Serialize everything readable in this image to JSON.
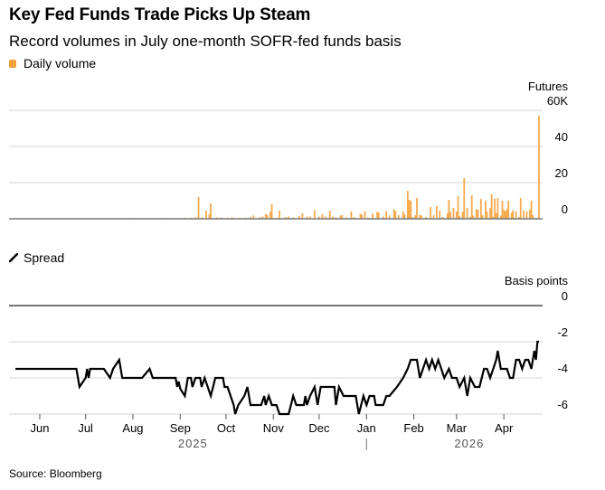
{
  "title": "Key Fed Funds Trade Picks Up Steam",
  "subtitle": "Record volumes in July one-month SOFR-fed funds basis",
  "source": "Source: Bloomberg",
  "colors": {
    "volume": "#f5a13a",
    "spread": "#000000",
    "grid": "#e3e3e3",
    "axis": "#777777"
  },
  "chart_data": [
    {
      "type": "bar",
      "name": "volume-chart",
      "legend": "Daily volume",
      "unit_label": "Futures",
      "ylabel": "Futures",
      "ylim": [
        0,
        60
      ],
      "yticks": [
        "0",
        "20",
        "40",
        "60K"
      ],
      "ytick_values": [
        0,
        20,
        40,
        60
      ],
      "grid": true,
      "x_start": "2025-05-16",
      "x_end": "2026-04-24",
      "series": [
        {
          "name": "Daily volume (thousands of contracts)",
          "points": [
            [
              "2025-07-30",
              0.4
            ],
            [
              "2025-08-10",
              0.3
            ],
            [
              "2025-08-20",
              0.5
            ],
            [
              "2025-08-28",
              0.3
            ],
            [
              "2025-09-04",
              0.6
            ],
            [
              "2025-09-08",
              0.5
            ],
            [
              "2025-09-11",
              0.8
            ],
            [
              "2025-09-13",
              12
            ],
            [
              "2025-09-15",
              0.7
            ],
            [
              "2025-09-18",
              4.5
            ],
            [
              "2025-09-20",
              2.5
            ],
            [
              "2025-09-21",
              8.5
            ],
            [
              "2025-09-25",
              0.8
            ],
            [
              "2025-09-28",
              0.7
            ],
            [
              "2025-10-02",
              0.6
            ],
            [
              "2025-10-05",
              0.8
            ],
            [
              "2025-10-10",
              0.5
            ],
            [
              "2025-10-14",
              0.6
            ],
            [
              "2025-10-17",
              1.0
            ],
            [
              "2025-10-19",
              1.8
            ],
            [
              "2025-10-23",
              0.9
            ],
            [
              "2025-10-25",
              1.2
            ],
            [
              "2025-10-27",
              2.5
            ],
            [
              "2025-10-28",
              2.2
            ],
            [
              "2025-10-30",
              4.0
            ],
            [
              "2025-10-31",
              8.0
            ],
            [
              "2025-11-03",
              0.6
            ],
            [
              "2025-11-05",
              4.5
            ],
            [
              "2025-11-09",
              1.0
            ],
            [
              "2025-11-11",
              1.2
            ],
            [
              "2025-11-14",
              0.7
            ],
            [
              "2025-11-18",
              1.5
            ],
            [
              "2025-11-20",
              3.0
            ],
            [
              "2025-11-23",
              1.2
            ],
            [
              "2025-11-25",
              1.2
            ],
            [
              "2025-11-28",
              4.8
            ],
            [
              "2025-12-01",
              1.2
            ],
            [
              "2025-12-03",
              2.5
            ],
            [
              "2025-12-05",
              1.3
            ],
            [
              "2025-12-08",
              4.5
            ],
            [
              "2025-12-10",
              1.2
            ],
            [
              "2025-12-12",
              0.8
            ],
            [
              "2025-12-15",
              1.8
            ],
            [
              "2025-12-16",
              2.0
            ],
            [
              "2025-12-19",
              0.8
            ],
            [
              "2025-12-22",
              4.0
            ],
            [
              "2025-12-24",
              1.0
            ],
            [
              "2025-12-28",
              2.8
            ],
            [
              "2025-12-29",
              2.3
            ],
            [
              "2025-12-31",
              4.3
            ],
            [
              "2026-01-02",
              0.7
            ],
            [
              "2026-01-05",
              2.8
            ],
            [
              "2026-01-08",
              3.8
            ],
            [
              "2026-01-09",
              3.5
            ],
            [
              "2026-01-12",
              1.2
            ],
            [
              "2026-01-14",
              4.3
            ],
            [
              "2026-01-16",
              1.8
            ],
            [
              "2026-01-19",
              5.3
            ],
            [
              "2026-01-20",
              4.3
            ],
            [
              "2026-01-22",
              2.0
            ],
            [
              "2026-01-25",
              4.0
            ],
            [
              "2026-01-26",
              2.5
            ],
            [
              "2026-01-28",
              15.5
            ],
            [
              "2026-01-29",
              10.5
            ],
            [
              "2026-01-31",
              1.0
            ],
            [
              "2026-02-02",
              2.0
            ],
            [
              "2026-02-05",
              2.2
            ],
            [
              "2026-02-06",
              1.8
            ],
            [
              "2026-02-09",
              1.0
            ],
            [
              "2026-02-12",
              6.5
            ],
            [
              "2026-02-14",
              2.0
            ],
            [
              "2026-02-16",
              7.0
            ],
            [
              "2026-02-18",
              4.5
            ],
            [
              "2026-02-20",
              1.0
            ],
            [
              "2026-02-23",
              3.0
            ],
            [
              "2026-02-25",
              3.8
            ],
            [
              "2026-02-27",
              6.0
            ],
            [
              "2026-03-01",
              4.0
            ],
            [
              "2026-03-03",
              1.5
            ],
            [
              "2026-03-05",
              3.8
            ],
            [
              "2026-03-08",
              6.0
            ],
            [
              "2026-03-10",
              1.0
            ],
            [
              "2026-03-12",
              1.8
            ],
            [
              "2026-03-14",
              5.3
            ],
            [
              "2026-03-15",
              5.0
            ],
            [
              "2026-03-18",
              2.0
            ],
            [
              "2026-03-21",
              4.0
            ],
            [
              "2026-03-23",
              6.0
            ],
            [
              "2026-03-25",
              1.0
            ],
            [
              "2026-03-27",
              3.2
            ],
            [
              "2026-03-30",
              1.8
            ],
            [
              "2026-04-01",
              5.0
            ],
            [
              "2026-04-02",
              4.2
            ],
            [
              "2026-04-03",
              5.5
            ],
            [
              "2026-04-06",
              3.2
            ],
            [
              "2026-04-07",
              4.8
            ],
            [
              "2026-04-09",
              4.0
            ],
            [
              "2026-04-11",
              1.0
            ],
            [
              "2026-04-14",
              4.5
            ],
            [
              "2026-04-16",
              4.0
            ],
            [
              "2026-04-18",
              5.0
            ],
            [
              "2026-04-20",
              2.0
            ],
            [
              "2026-04-22",
              0.5
            ],
            [
              "2026-04-24",
              57
            ],
            [
              "2026-01-30",
              10.0
            ],
            [
              "2026-02-24",
              10.5
            ],
            [
              "2026-03-17",
              11.0
            ],
            [
              "2026-03-20",
              10.0
            ],
            [
              "2026-03-26",
              11.0
            ],
            [
              "2026-04-04",
              10.0
            ],
            [
              "2026-04-12",
              11.5
            ],
            [
              "2026-04-19",
              10.0
            ],
            [
              "2026-03-28",
              11.5
            ],
            [
              "2026-03-02",
              12.5
            ],
            [
              "2026-03-06",
              22.5
            ],
            [
              "2026-03-11",
              13.0
            ],
            [
              "2026-03-24",
              13.5
            ],
            [
              "2026-02-03",
              11.5
            ],
            [
              "2026-03-31",
              10.0
            ]
          ]
        }
      ]
    },
    {
      "type": "line",
      "name": "spread-chart",
      "legend": "Spread",
      "unit_label": "Basis points",
      "ylabel": "Basis points",
      "ylim": [
        -6,
        0
      ],
      "yticks": [
        "0",
        "-2",
        "-4",
        "-6"
      ],
      "ytick_values": [
        0,
        -2,
        -4,
        -6
      ],
      "grid": true,
      "x_start": "2025-05-16",
      "x_end": "2026-04-24",
      "xticks": [
        "Jun",
        "Jul",
        "Aug",
        "Sep",
        "Oct",
        "Nov",
        "Dec",
        "Jan",
        "Feb",
        "Mar",
        "Apr"
      ],
      "xtick_dates": [
        "2025-06-01",
        "2025-07-01",
        "2025-08-01",
        "2025-09-01",
        "2025-10-01",
        "2025-11-01",
        "2025-12-01",
        "2026-01-01",
        "2026-02-01",
        "2026-03-01",
        "2026-04-01"
      ],
      "year_labels": [
        {
          "label": "2025",
          "date": "2025-09-01"
        },
        {
          "label": "2026",
          "date": "2026-03-01"
        }
      ],
      "year_divider_date": "2026-01-01",
      "series": [
        {
          "name": "Spread (bp)",
          "points": [
            [
              "2025-05-16",
              -3.5
            ],
            [
              "2025-06-25",
              -3.5
            ],
            [
              "2025-06-27",
              -4.5
            ],
            [
              "2025-07-01",
              -4.0
            ],
            [
              "2025-07-02",
              -3.5
            ],
            [
              "2025-07-03",
              -4.0
            ],
            [
              "2025-07-04",
              -3.5
            ],
            [
              "2025-07-13",
              -3.5
            ],
            [
              "2025-07-17",
              -4.0
            ],
            [
              "2025-07-19",
              -3.5
            ],
            [
              "2025-07-23",
              -3.0
            ],
            [
              "2025-07-25",
              -4.0
            ],
            [
              "2025-08-07",
              -4.0
            ],
            [
              "2025-08-12",
              -3.5
            ],
            [
              "2025-08-14",
              -4.0
            ],
            [
              "2025-08-29",
              -4.0
            ],
            [
              "2025-08-30",
              -4.5
            ],
            [
              "2025-08-31",
              -4.2
            ],
            [
              "2025-09-01",
              -4.6
            ],
            [
              "2025-09-04",
              -5.0
            ],
            [
              "2025-09-06",
              -4.0
            ],
            [
              "2025-09-08",
              -4.0
            ],
            [
              "2025-09-09",
              -4.5
            ],
            [
              "2025-09-11",
              -4.0
            ],
            [
              "2025-09-14",
              -4.0
            ],
            [
              "2025-09-15",
              -4.5
            ],
            [
              "2025-09-17",
              -4.0
            ],
            [
              "2025-09-19",
              -4.5
            ],
            [
              "2025-09-21",
              -5.0
            ],
            [
              "2025-09-24",
              -4.0
            ],
            [
              "2025-09-29",
              -4.0
            ],
            [
              "2025-09-30",
              -4.5
            ],
            [
              "2025-10-02",
              -4.5
            ],
            [
              "2025-10-04",
              -5.0
            ],
            [
              "2025-10-06",
              -5.5
            ],
            [
              "2025-10-07",
              -6.0
            ],
            [
              "2025-10-09",
              -5.5
            ],
            [
              "2025-10-13",
              -5.0
            ],
            [
              "2025-10-15",
              -4.5
            ],
            [
              "2025-10-17",
              -5.5
            ],
            [
              "2025-10-24",
              -5.5
            ],
            [
              "2025-10-26",
              -5.0
            ],
            [
              "2025-10-27",
              -5.5
            ],
            [
              "2025-10-29",
              -5.0
            ],
            [
              "2025-10-31",
              -5.5
            ],
            [
              "2025-11-03",
              -5.5
            ],
            [
              "2025-11-05",
              -6.0
            ],
            [
              "2025-11-11",
              -6.0
            ],
            [
              "2025-11-14",
              -5.0
            ],
            [
              "2025-11-16",
              -5.5
            ],
            [
              "2025-11-21",
              -5.5
            ],
            [
              "2025-11-22",
              -5.0
            ],
            [
              "2025-11-23",
              -5.5
            ],
            [
              "2025-11-25",
              -5.0
            ],
            [
              "2025-11-28",
              -4.5
            ],
            [
              "2025-11-30",
              -5.5
            ],
            [
              "2025-12-02",
              -4.5
            ],
            [
              "2025-12-11",
              -4.5
            ],
            [
              "2025-12-12",
              -5.5
            ],
            [
              "2025-12-14",
              -4.5
            ],
            [
              "2025-12-17",
              -5.0
            ],
            [
              "2025-12-20",
              -5.0
            ],
            [
              "2025-12-25",
              -5.0
            ],
            [
              "2025-12-27",
              -6.0
            ],
            [
              "2025-12-30",
              -5.0
            ],
            [
              "2026-01-01",
              -5.5
            ],
            [
              "2026-01-03",
              -5.0
            ],
            [
              "2026-01-06",
              -5.0
            ],
            [
              "2026-01-07",
              -5.5
            ],
            [
              "2026-01-09",
              -5.5
            ],
            [
              "2026-01-12",
              -5.5
            ],
            [
              "2026-01-14",
              -5.0
            ],
            [
              "2026-01-16",
              -5.0
            ],
            [
              "2026-01-21",
              -4.5
            ],
            [
              "2026-01-25",
              -4.0
            ],
            [
              "2026-01-28",
              -3.5
            ],
            [
              "2026-01-30",
              -3.0
            ],
            [
              "2026-02-03",
              -3.0
            ],
            [
              "2026-02-05",
              -4.0
            ],
            [
              "2026-02-09",
              -3.0
            ],
            [
              "2026-02-11",
              -3.5
            ],
            [
              "2026-02-13",
              -3.0
            ],
            [
              "2026-02-15",
              -3.5
            ],
            [
              "2026-02-17",
              -3.0
            ],
            [
              "2026-02-19",
              -3.5
            ],
            [
              "2026-02-21",
              -4.0
            ],
            [
              "2026-02-24",
              -3.5
            ],
            [
              "2026-02-26",
              -4.0
            ],
            [
              "2026-03-01",
              -4.0
            ],
            [
              "2026-03-03",
              -4.5
            ],
            [
              "2026-03-06",
              -4.0
            ],
            [
              "2026-03-08",
              -5.0
            ],
            [
              "2026-03-10",
              -4.0
            ],
            [
              "2026-03-13",
              -4.5
            ],
            [
              "2026-03-16",
              -4.5
            ],
            [
              "2026-03-19",
              -3.5
            ],
            [
              "2026-03-21",
              -3.5
            ],
            [
              "2026-03-23",
              -4.0
            ],
            [
              "2026-03-25",
              -3.5
            ],
            [
              "2026-03-27",
              -3.0
            ],
            [
              "2026-03-28",
              -2.5
            ],
            [
              "2026-03-30",
              -3.5
            ],
            [
              "2026-04-03",
              -3.5
            ],
            [
              "2026-04-05",
              -4.0
            ],
            [
              "2026-04-07",
              -4.0
            ],
            [
              "2026-04-09",
              -3.0
            ],
            [
              "2026-04-11",
              -3.0
            ],
            [
              "2026-04-13",
              -3.5
            ],
            [
              "2026-04-15",
              -3.0
            ],
            [
              "2026-04-17",
              -3.0
            ],
            [
              "2026-04-19",
              -3.5
            ],
            [
              "2026-04-20",
              -3.0
            ],
            [
              "2026-04-21",
              -2.5
            ],
            [
              "2026-04-22",
              -3.0
            ],
            [
              "2026-04-23",
              -2.0
            ],
            [
              "2026-04-24",
              -2.0
            ]
          ]
        }
      ]
    }
  ]
}
